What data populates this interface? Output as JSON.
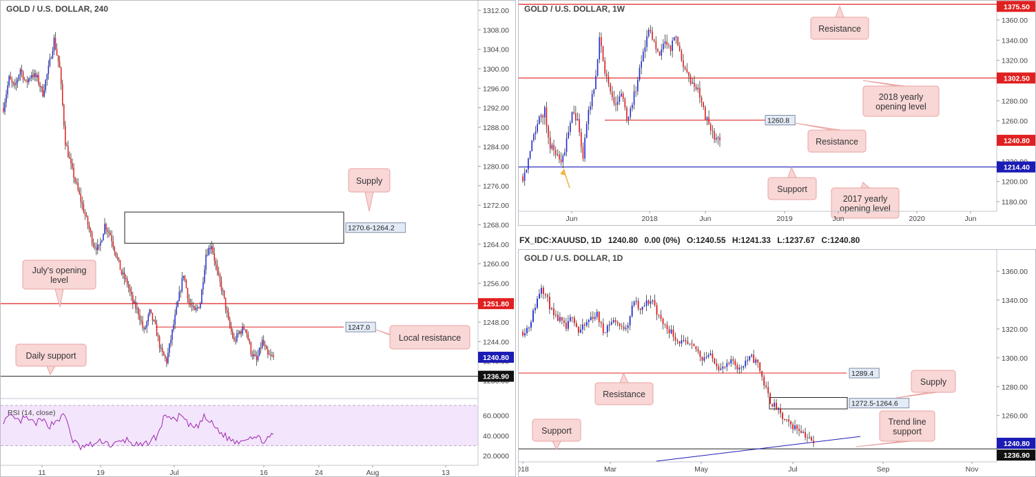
{
  "colors": {
    "up": "#1f2dd6",
    "down": "#e01c1c",
    "resistance": "#e02020",
    "support": "#1b1bb5",
    "callout_bg": "#f8d7d6",
    "callout_border": "#e8a3a1",
    "rsi_bg": "#f3e5fb",
    "rsi_line": "#9c27b0"
  },
  "panel_4h": {
    "title": "GOLD / U.S. DOLLAR, 240",
    "y_ticks": [
      "1312.00",
      "1308.00",
      "1304.00",
      "1300.00",
      "1296.00",
      "1292.00",
      "1288.00",
      "1284.00",
      "1280.00",
      "1276.00",
      "1272.00",
      "1268.00",
      "1264.00",
      "1260.00",
      "1256.00",
      "1252.00",
      "1248.00",
      "1244.00",
      "1240.00",
      "1236.00"
    ],
    "x_ticks": [
      "11",
      "19",
      "Jul",
      "16",
      "24",
      "Aug",
      "13"
    ],
    "price_tags": {
      "july_open": "1251.80",
      "current": "1240.80",
      "daily_support": "1236.90"
    },
    "level_tags": {
      "supply": "1270.6-1264.2",
      "local_resistance": "1247.0"
    },
    "callouts": {
      "supply": "Supply",
      "july_open_1": "July's opening",
      "july_open_2": "level",
      "local_resistance": "Local resistance",
      "daily_support": "Daily support"
    },
    "rsi": {
      "label": "RSI (14, close)",
      "ticks": [
        "60.0000",
        "40.0000",
        "20.0000"
      ]
    }
  },
  "panel_1w": {
    "title": "GOLD / U.S. DOLLAR, 1W",
    "y_ticks": [
      "1360.00",
      "1340.00",
      "1320.00",
      "1300.00",
      "1280.00",
      "1260.00",
      "1240.00",
      "1220.00",
      "1200.00",
      "1180.00"
    ],
    "x_ticks": [
      "Jun",
      "2018",
      "Jun",
      "2019",
      "Jun",
      "2020",
      "Jun"
    ],
    "price_tags": {
      "resistance_top": "1375.50",
      "yearly_2018": "1302.50",
      "current": "1240.80",
      "support": "1214.40"
    },
    "level_tags": {
      "resistance": "1260.8"
    },
    "callouts": {
      "resistance_top": "Resistance",
      "yearly_2018_1": "2018 yearly",
      "yearly_2018_2": "opening level",
      "resistance": "Resistance",
      "support": "Support",
      "yearly_2017_1": "2017 yearly",
      "yearly_2017_2": "opening level"
    }
  },
  "panel_1d": {
    "header": {
      "symbol": "FX_IDC:XAUUSD, 1D",
      "price": "1240.80",
      "change": "0.00 (0%)",
      "open": "O:1240.55",
      "high": "H:1241.33",
      "low": "L:1237.67",
      "close": "C:1240.80"
    },
    "title": "GOLD / U.S. DOLLAR, 1D",
    "y_ticks": [
      "1360.00",
      "1340.00",
      "1320.00",
      "1300.00",
      "1280.00",
      "1260.00"
    ],
    "x_ticks": [
      "018",
      "Mar",
      "May",
      "Jul",
      "Sep",
      "Nov"
    ],
    "price_tags": {
      "current": "1240.80",
      "support": "1236.90"
    },
    "level_tags": {
      "resistance": "1289.4",
      "supply": "1272.5-1264.6"
    },
    "callouts": {
      "resistance": "Resistance",
      "supply": "Supply",
      "support": "Support",
      "trend_1": "Trend line",
      "trend_2": "support"
    }
  },
  "chart_data": [
    {
      "type": "candlestick",
      "title": "GOLD / U.S. DOLLAR, 240",
      "ylim": [
        1232,
        1313
      ],
      "path_close": [
        1292,
        1298,
        1296,
        1300,
        1297,
        1299,
        1298,
        1295,
        1300,
        1306,
        1300,
        1285,
        1280,
        1276,
        1272,
        1268,
        1264,
        1263,
        1268,
        1266,
        1262,
        1258,
        1256,
        1252,
        1250,
        1246,
        1250,
        1247,
        1242,
        1240,
        1246,
        1252,
        1258,
        1252,
        1250,
        1252,
        1262,
        1264,
        1258,
        1254,
        1248,
        1244,
        1246,
        1247,
        1242,
        1240,
        1244,
        1241,
        1240.8
      ],
      "annotations": [
        {
          "label": "Supply",
          "zone": [
            1264.2,
            1270.6
          ]
        },
        {
          "label": "July's opening level",
          "value": 1251.8
        },
        {
          "label": "Local resistance",
          "value": 1247.0
        },
        {
          "label": "Daily support",
          "value": 1236.9
        }
      ]
    },
    {
      "type": "line",
      "title": "RSI (14, close)",
      "ylim": [
        18,
        70
      ],
      "values": [
        55,
        58,
        54,
        57,
        52,
        55,
        50,
        56,
        60,
        35,
        28,
        30,
        32,
        35,
        30,
        33,
        36,
        31,
        29,
        35,
        40,
        62,
        55,
        60,
        50,
        48,
        58,
        52,
        44,
        38,
        34,
        36,
        40,
        37,
        35,
        40
      ]
    },
    {
      "type": "candlestick",
      "title": "GOLD / U.S. DOLLAR, 1W",
      "ylim": [
        1170,
        1377
      ],
      "path_close": [
        1205,
        1220,
        1250,
        1260,
        1270,
        1235,
        1230,
        1215,
        1240,
        1270,
        1260,
        1225,
        1270,
        1290,
        1340,
        1310,
        1285,
        1275,
        1290,
        1260,
        1280,
        1300,
        1330,
        1350,
        1340,
        1325,
        1340,
        1330,
        1345,
        1320,
        1305,
        1295,
        1290,
        1270,
        1255,
        1245,
        1240.8
      ],
      "annotations": [
        {
          "label": "Resistance",
          "value": 1375.5
        },
        {
          "label": "2018 yearly opening level",
          "value": 1302.5
        },
        {
          "label": "Resistance",
          "value": 1260.8
        },
        {
          "label": "Support",
          "value": 1214.4
        },
        {
          "label": "2017 yearly opening level"
        }
      ]
    },
    {
      "type": "candlestick",
      "title": "GOLD / U.S. DOLLAR, 1D",
      "ylim": [
        1232,
        1368
      ],
      "path_close": [
        1318,
        1322,
        1336,
        1350,
        1340,
        1328,
        1326,
        1320,
        1330,
        1318,
        1322,
        1328,
        1330,
        1318,
        1324,
        1326,
        1320,
        1324,
        1340,
        1332,
        1338,
        1340,
        1328,
        1322,
        1318,
        1312,
        1310,
        1308,
        1306,
        1300,
        1302,
        1298,
        1292,
        1294,
        1298,
        1292,
        1298,
        1300,
        1296,
        1282,
        1270,
        1265,
        1258,
        1254,
        1252,
        1250,
        1245,
        1240.8
      ],
      "annotations": [
        {
          "label": "Resistance",
          "value": 1289.4
        },
        {
          "label": "Supply",
          "zone": [
            1264.6,
            1272.5
          ]
        },
        {
          "label": "Support",
          "value": 1236.9
        },
        {
          "label": "Trend line support"
        }
      ]
    }
  ]
}
